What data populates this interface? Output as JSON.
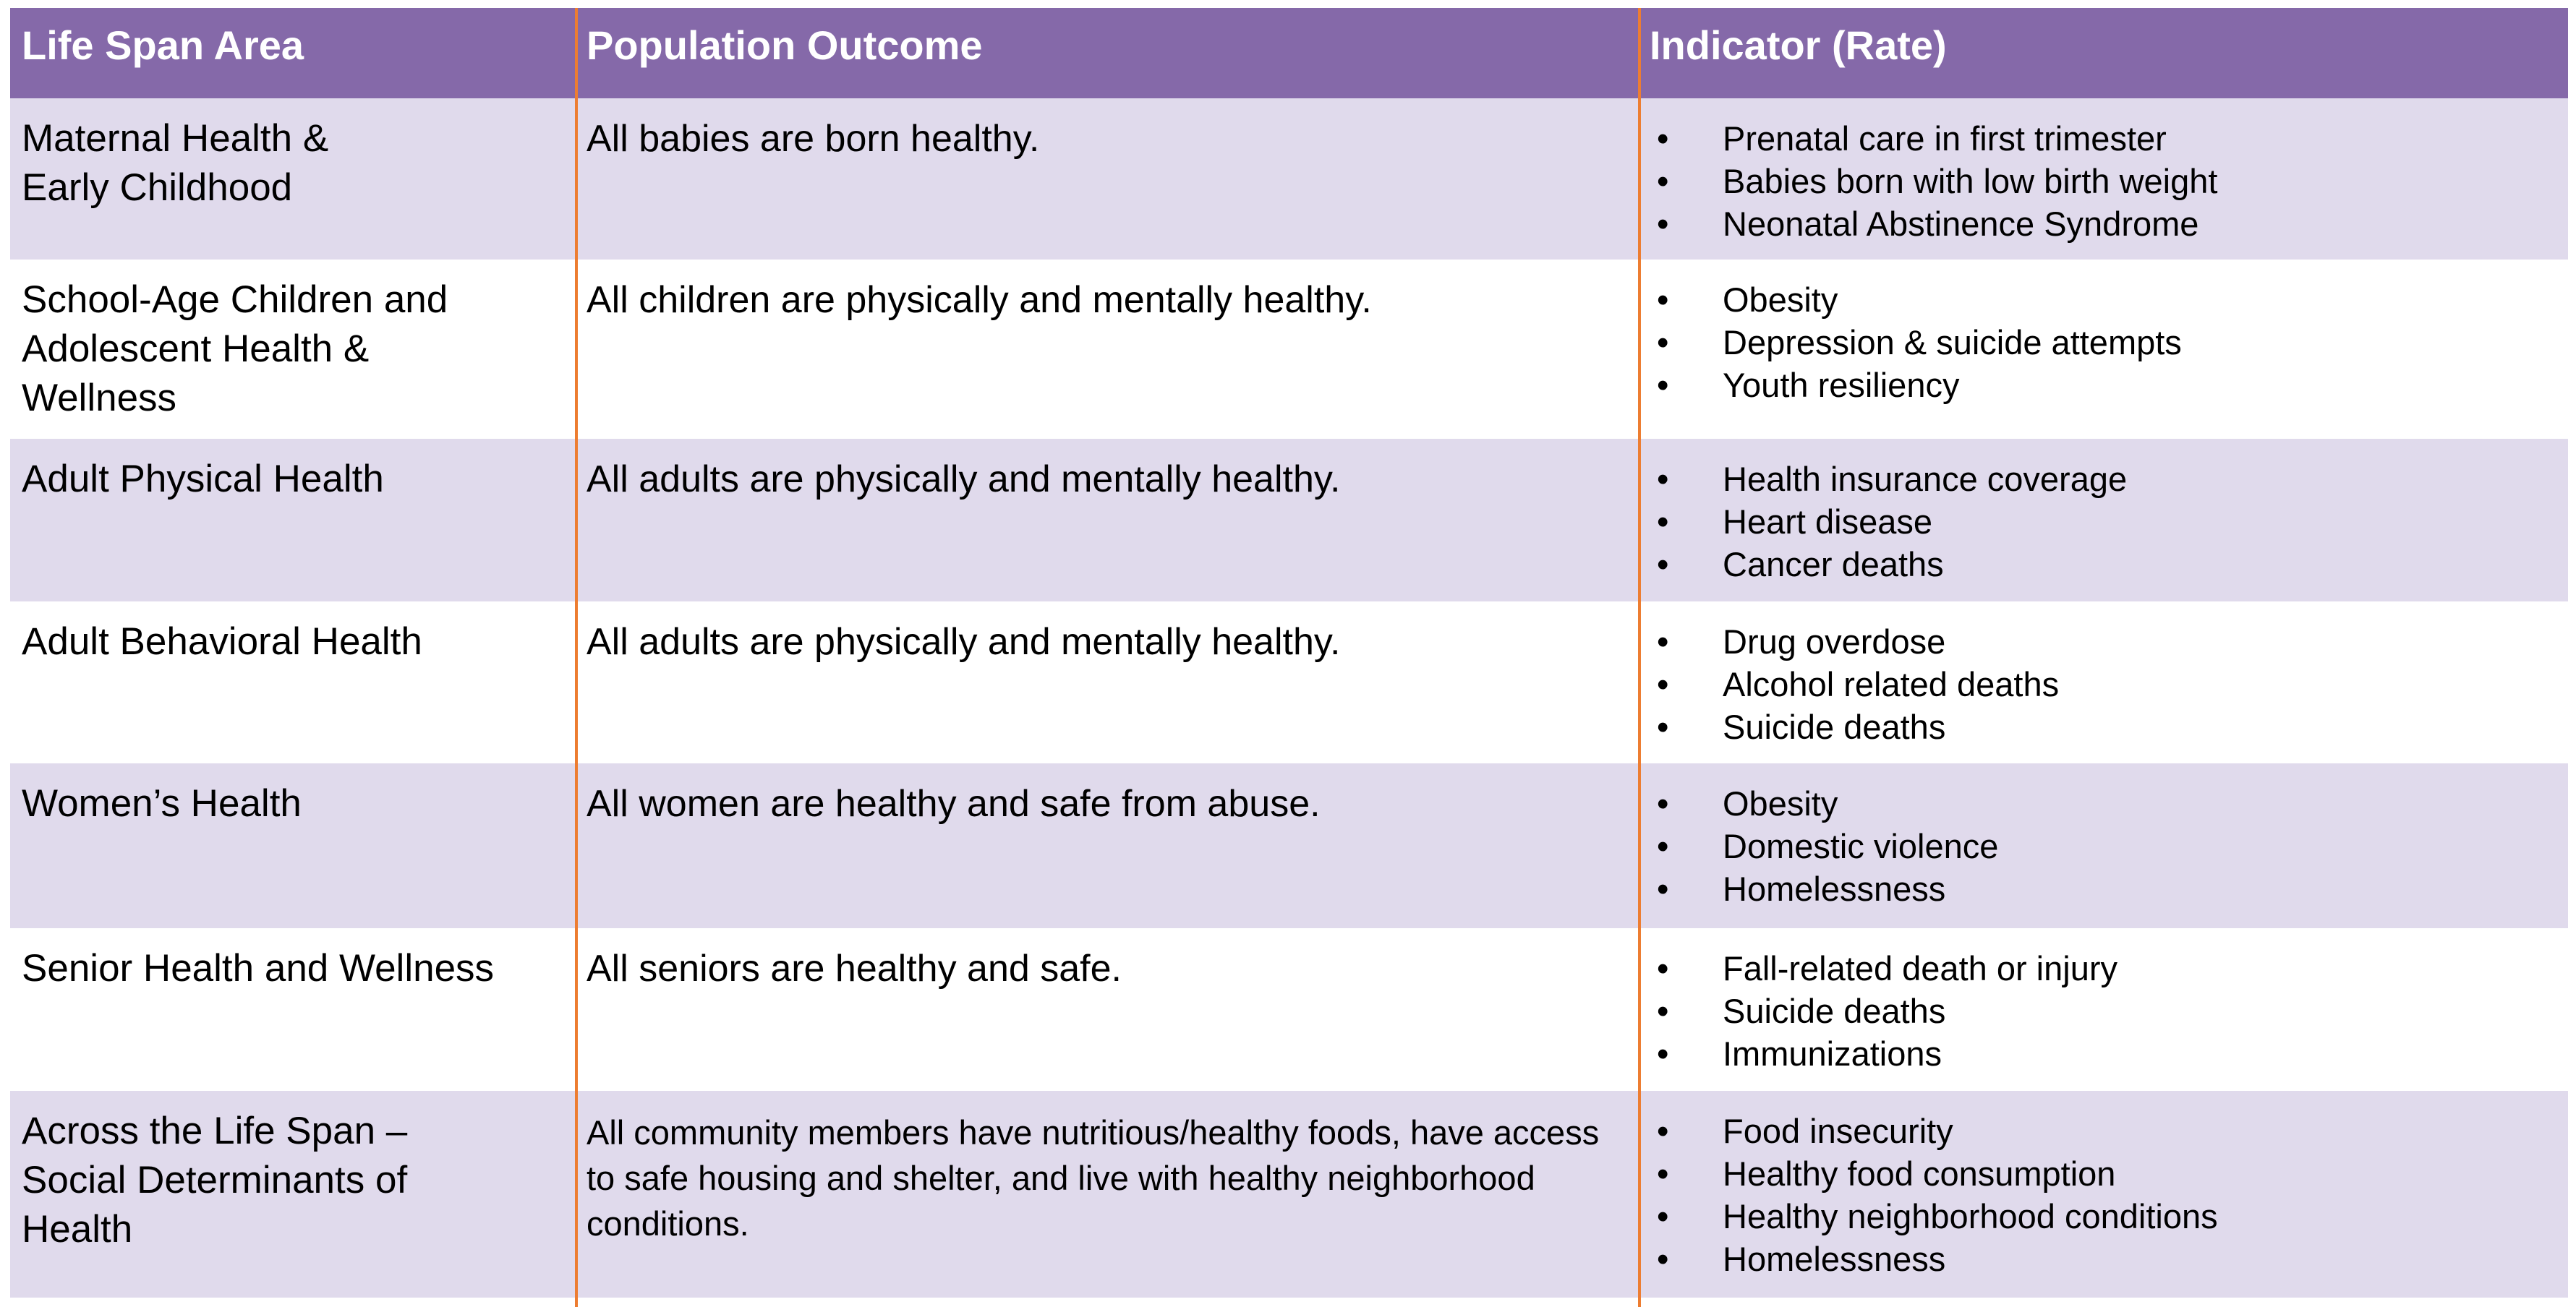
{
  "header": {
    "col1": "Life Span Area",
    "col2": "Population Outcome",
    "col3": "Indicator (Rate)"
  },
  "colors": {
    "header": "#8569A9",
    "row_shaded": "#E0DAEC",
    "row_plain": "#FFFFFF",
    "divider": "#ED7D31"
  },
  "rows": [
    {
      "area": [
        "Maternal Health &",
        "Early Childhood"
      ],
      "outcome": "All babies are born healthy.",
      "indicators": [
        "Prenatal care in first trimester",
        "Babies born with low birth weight",
        "Neonatal Abstinence Syndrome"
      ]
    },
    {
      "area": [
        "School-Age Children and",
        "Adolescent Health &",
        "Wellness"
      ],
      "outcome": "All children are physically and mentally healthy.",
      "indicators": [
        "Obesity",
        "Depression & suicide attempts",
        "Youth resiliency"
      ]
    },
    {
      "area": [
        "Adult Physical Health"
      ],
      "outcome": "All adults are physically and mentally healthy.",
      "indicators": [
        "Health insurance coverage",
        "Heart disease",
        "Cancer deaths"
      ]
    },
    {
      "area": [
        "Adult Behavioral Health"
      ],
      "outcome": "All adults are physically and mentally healthy.",
      "indicators": [
        "Drug overdose",
        "Alcohol related deaths",
        "Suicide deaths"
      ]
    },
    {
      "area": [
        "Women’s Health"
      ],
      "outcome": "All women are healthy and safe from abuse.",
      "indicators": [
        "Obesity",
        "Domestic violence",
        "Homelessness"
      ]
    },
    {
      "area": [
        "Senior Health and Wellness"
      ],
      "outcome": "All seniors are healthy and safe.",
      "indicators": [
        "Fall-related death or injury",
        "Suicide deaths",
        "Immunizations"
      ]
    },
    {
      "area": [
        "Across the Life Span –",
        "Social Determinants of",
        "Health"
      ],
      "outcome": "All community members have nutritious/healthy foods, have access to safe housing and shelter, and live with healthy neighborhood conditions.",
      "indicators": [
        "Food insecurity",
        "Healthy food consumption",
        "Healthy neighborhood conditions",
        "Homelessness"
      ]
    }
  ],
  "bullet": "•"
}
